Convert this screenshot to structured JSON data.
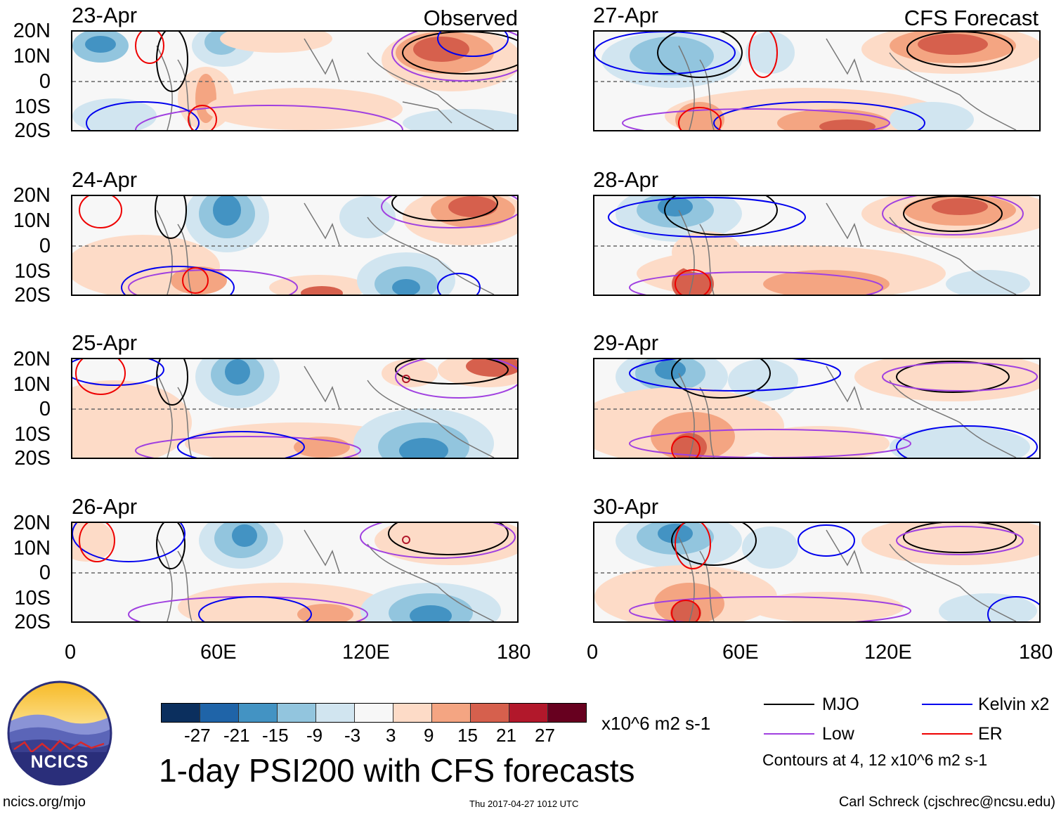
{
  "panels": [
    {
      "id": "p1",
      "date": "23-Apr",
      "corner": "Observed"
    },
    {
      "id": "p2",
      "date": "24-Apr",
      "corner": ""
    },
    {
      "id": "p3",
      "date": "25-Apr",
      "corner": ""
    },
    {
      "id": "p4",
      "date": "26-Apr",
      "corner": ""
    },
    {
      "id": "p5",
      "date": "27-Apr",
      "corner": "CFS Forecast"
    },
    {
      "id": "p6",
      "date": "28-Apr",
      "corner": ""
    },
    {
      "id": "p7",
      "date": "29-Apr",
      "corner": ""
    },
    {
      "id": "p8",
      "date": "30-Apr",
      "corner": ""
    }
  ],
  "lat_labels": [
    "20N",
    "10N",
    "0",
    "10S",
    "20S"
  ],
  "lon_labels": [
    "0",
    "60E",
    "120E",
    "180"
  ],
  "colorbar": {
    "colors": [
      "#0b2f5e",
      "#1f64a8",
      "#4393c3",
      "#92c5de",
      "#d1e5f0",
      "#f7f7f7",
      "#fddbc7",
      "#f4a582",
      "#d6604d",
      "#b2182b",
      "#67001f"
    ],
    "labels": [
      "-27",
      "-21",
      "-15",
      "-9",
      "-3",
      "3",
      "9",
      "15",
      "21",
      "27"
    ],
    "units": "x10^6 m2 s-1"
  },
  "title": "1-day PSI200 with CFS forecasts",
  "legend": {
    "items": [
      {
        "label": "MJO",
        "color": "#000000"
      },
      {
        "label": "Kelvin x2",
        "color": "#0000ee"
      },
      {
        "label": "Low",
        "color": "#a040e0"
      },
      {
        "label": "ER",
        "color": "#ee0000"
      }
    ],
    "note": "Contours at 4, 12 x10^6 m2 s-1"
  },
  "footer": {
    "left": "ncics.org/mjo",
    "center": "Thu 2017-04-27 1012 UTC",
    "right": "Carl Schreck (cjschrec@ncsu.edu)"
  },
  "logo": {
    "text": "NCICS"
  }
}
